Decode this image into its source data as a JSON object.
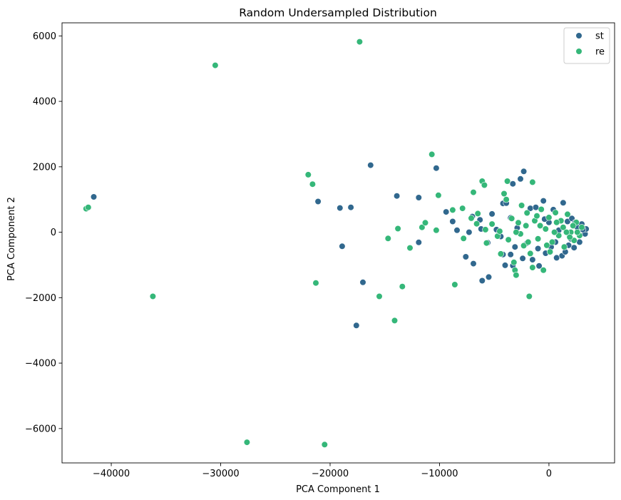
{
  "chart_data": {
    "type": "scatter",
    "title": "Random Undersampled Distribution",
    "xlabel": "PCA Component 1",
    "ylabel": "PCA Component 2",
    "xlim": [
      -44500,
      6000
    ],
    "ylim": [
      -7050,
      6400
    ],
    "x_ticks": [
      -40000,
      -30000,
      -20000,
      -10000,
      0
    ],
    "x_tick_labels": [
      "−40000",
      "−30000",
      "−20000",
      "−10000",
      "0"
    ],
    "y_ticks": [
      -6000,
      -4000,
      -2000,
      0,
      2000,
      4000,
      6000
    ],
    "y_tick_labels": [
      "−6000",
      "−4000",
      "−2000",
      "0",
      "2000",
      "4000",
      "6000"
    ],
    "grid": false,
    "legend_position": "top-right",
    "series": [
      {
        "name": "st",
        "color": "#31688e",
        "points": [
          [
            -41600,
            1080
          ],
          [
            -21100,
            940
          ],
          [
            -19100,
            740
          ],
          [
            -18100,
            760
          ],
          [
            -18900,
            -430
          ],
          [
            -17600,
            -2850
          ],
          [
            -17000,
            -1530
          ],
          [
            -16300,
            2050
          ],
          [
            -13900,
            1110
          ],
          [
            -11900,
            1060
          ],
          [
            -11900,
            -310
          ],
          [
            -10300,
            1960
          ],
          [
            -9400,
            620
          ],
          [
            -8800,
            330
          ],
          [
            -8400,
            60
          ],
          [
            -7600,
            -750
          ],
          [
            -7300,
            0
          ],
          [
            -6900,
            -960
          ],
          [
            -7000,
            480
          ],
          [
            -6300,
            380
          ],
          [
            -6200,
            100
          ],
          [
            -5600,
            -320
          ],
          [
            -5500,
            -1370
          ],
          [
            -5200,
            560
          ],
          [
            -4800,
            80
          ],
          [
            -4400,
            -130
          ],
          [
            -4200,
            880
          ],
          [
            -3900,
            890
          ],
          [
            -3500,
            440
          ],
          [
            -3500,
            -680
          ],
          [
            -3300,
            1480
          ],
          [
            -3100,
            -450
          ],
          [
            -2900,
            130
          ],
          [
            -2600,
            1630
          ],
          [
            -2300,
            1860
          ],
          [
            -2000,
            -330
          ],
          [
            -1700,
            730
          ],
          [
            -1500,
            -840
          ],
          [
            -1200,
            760
          ],
          [
            -900,
            -1030
          ],
          [
            -500,
            960
          ],
          [
            -300,
            -640
          ],
          [
            0,
            300
          ],
          [
            200,
            -450
          ],
          [
            400,
            690
          ],
          [
            700,
            -780
          ],
          [
            900,
            60
          ],
          [
            1200,
            -720
          ],
          [
            1300,
            900
          ],
          [
            1500,
            -600
          ],
          [
            1700,
            330
          ],
          [
            2000,
            -200
          ],
          [
            2100,
            420
          ],
          [
            2300,
            -470
          ],
          [
            2600,
            150
          ],
          [
            2800,
            -300
          ],
          [
            3000,
            250
          ],
          [
            3300,
            -50
          ],
          [
            3400,
            100
          ],
          [
            -4000,
            -1010
          ],
          [
            -4200,
            -680
          ],
          [
            -3300,
            -1020
          ],
          [
            -6100,
            -1480
          ],
          [
            -2400,
            -800
          ],
          [
            -1000,
            -500
          ],
          [
            600,
            -300
          ],
          [
            1800,
            -400
          ],
          [
            -400,
            400
          ],
          [
            2400,
            300
          ],
          [
            3100,
            80
          ]
        ]
      },
      {
        "name": "re",
        "color": "#35b779",
        "points": [
          [
            -42300,
            720
          ],
          [
            -42100,
            760
          ],
          [
            -36200,
            -1960
          ],
          [
            -30500,
            5100
          ],
          [
            -27600,
            -6420
          ],
          [
            -22000,
            1760
          ],
          [
            -21600,
            1470
          ],
          [
            -21300,
            -1550
          ],
          [
            -20500,
            -6490
          ],
          [
            -17300,
            5820
          ],
          [
            -15500,
            -1960
          ],
          [
            -14700,
            -190
          ],
          [
            -14100,
            -2700
          ],
          [
            -13800,
            110
          ],
          [
            -13400,
            -1660
          ],
          [
            -12700,
            -480
          ],
          [
            -11600,
            150
          ],
          [
            -11300,
            290
          ],
          [
            -10700,
            2380
          ],
          [
            -10300,
            60
          ],
          [
            -10100,
            1130
          ],
          [
            -8800,
            680
          ],
          [
            -8600,
            -1600
          ],
          [
            -7900,
            730
          ],
          [
            -7800,
            -190
          ],
          [
            -7100,
            430
          ],
          [
            -6900,
            1220
          ],
          [
            -6600,
            260
          ],
          [
            -6500,
            570
          ],
          [
            -6100,
            1560
          ],
          [
            -5900,
            1440
          ],
          [
            -5800,
            80
          ],
          [
            -5700,
            -330
          ],
          [
            -5200,
            250
          ],
          [
            -4700,
            -120
          ],
          [
            -4400,
            -660
          ],
          [
            -4100,
            1180
          ],
          [
            -3900,
            1000
          ],
          [
            -3700,
            -230
          ],
          [
            -3400,
            420
          ],
          [
            -3200,
            -920
          ],
          [
            -3100,
            -1160
          ],
          [
            -3000,
            -1310
          ],
          [
            -2800,
            290
          ],
          [
            -2500,
            820
          ],
          [
            -2300,
            -410
          ],
          [
            -2000,
            590
          ],
          [
            -1800,
            -1960
          ],
          [
            -1500,
            1530
          ],
          [
            -1500,
            -1080
          ],
          [
            -1300,
            350
          ],
          [
            -1000,
            -200
          ],
          [
            -700,
            700
          ],
          [
            -500,
            -1160
          ],
          [
            -300,
            100
          ],
          [
            0,
            450
          ],
          [
            300,
            -300
          ],
          [
            600,
            600
          ],
          [
            900,
            -100
          ],
          [
            1100,
            350
          ],
          [
            1400,
            -450
          ],
          [
            1700,
            550
          ],
          [
            2000,
            0
          ],
          [
            2300,
            -250
          ],
          [
            2500,
            300
          ],
          [
            2800,
            -100
          ],
          [
            3000,
            150
          ],
          [
            -3800,
            1560
          ],
          [
            -4500,
            30
          ],
          [
            -2600,
            -50
          ],
          [
            -1700,
            -650
          ],
          [
            -800,
            200
          ],
          [
            -200,
            -400
          ],
          [
            500,
            0
          ],
          [
            1300,
            150
          ],
          [
            1900,
            -150
          ],
          [
            2600,
            0
          ],
          [
            -2100,
            200
          ],
          [
            -1100,
            500
          ],
          [
            700,
            300
          ],
          [
            -3000,
            0
          ],
          [
            -1900,
            -300
          ],
          [
            100,
            -600
          ],
          [
            1600,
            0
          ],
          [
            2200,
            200
          ]
        ]
      }
    ]
  }
}
